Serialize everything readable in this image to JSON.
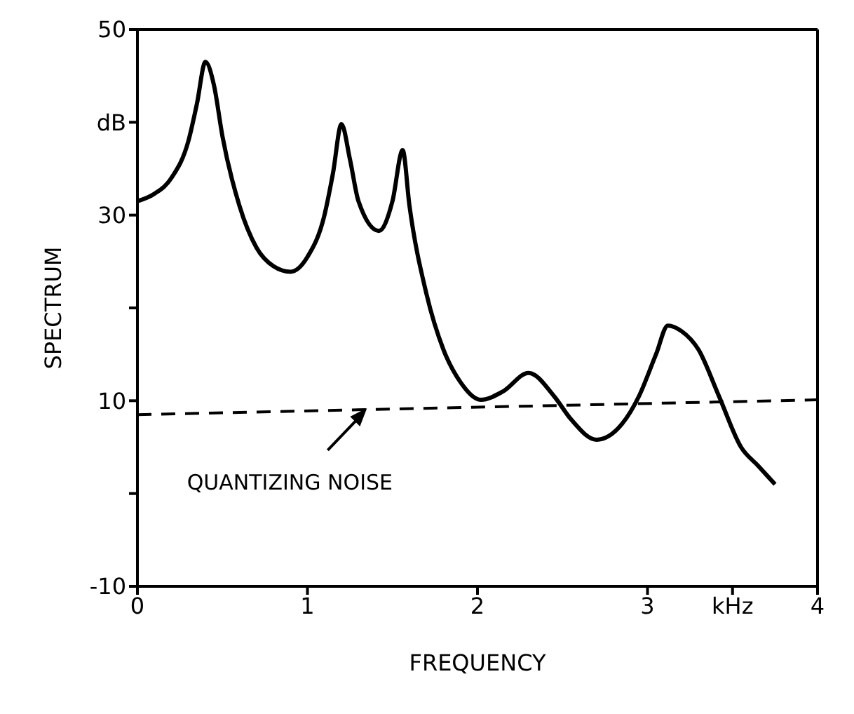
{
  "chart_data": {
    "type": "line",
    "xlabel": "FREQUENCY",
    "ylabel": "SPECTRUM",
    "xlim": [
      0,
      4
    ],
    "xticks": [
      0,
      1,
      2,
      3,
      {
        "value": 3.5,
        "label": "kHz"
      },
      4
    ],
    "ylim": [
      -10,
      50
    ],
    "yticks": [
      -10,
      {
        "value": 0,
        "label": null
      },
      10,
      {
        "value": 20,
        "label": null
      },
      30,
      {
        "value": 40,
        "label": "dB"
      },
      50
    ],
    "grid": false,
    "legend": false,
    "marker": "none",
    "series": [
      {
        "color": "#000000",
        "line_style": "solid",
        "x": [
          0,
          0.1,
          0.2,
          0.3,
          0.35,
          0.4,
          0.45,
          0.5,
          0.6,
          0.7,
          0.8,
          0.9,
          1.0,
          1.1,
          1.15,
          1.2,
          1.25,
          1.3,
          1.42,
          1.5,
          1.56,
          1.6,
          1.7,
          1.8,
          1.9,
          2.02,
          2.15,
          2.3,
          2.45,
          2.55,
          2.7,
          2.85,
          2.95,
          3.05,
          3.12,
          3.2,
          3.3,
          3.42,
          3.55,
          3.65,
          3.75
        ],
        "values": [
          31.5,
          32.3,
          34,
          38,
          42,
          46.5,
          44,
          38.5,
          31,
          26.5,
          24.5,
          23.9,
          25.5,
          30,
          34.5,
          39.8,
          36,
          31.5,
          28.3,
          31.5,
          37,
          31,
          21.5,
          15.5,
          12,
          10.1,
          11,
          13,
          10.5,
          8,
          5.8,
          7.5,
          10.5,
          15,
          18.1,
          17.5,
          15.5,
          10.5,
          5,
          3,
          1
        ]
      },
      {
        "color": "#000000",
        "line_style": "dashed",
        "x": [
          0,
          4
        ],
        "values": [
          8.5,
          10.1
        ]
      }
    ],
    "annotations": [
      {
        "text": "QUANTIZING NOISE",
        "x": 1.35,
        "y": 9.2
      }
    ]
  }
}
